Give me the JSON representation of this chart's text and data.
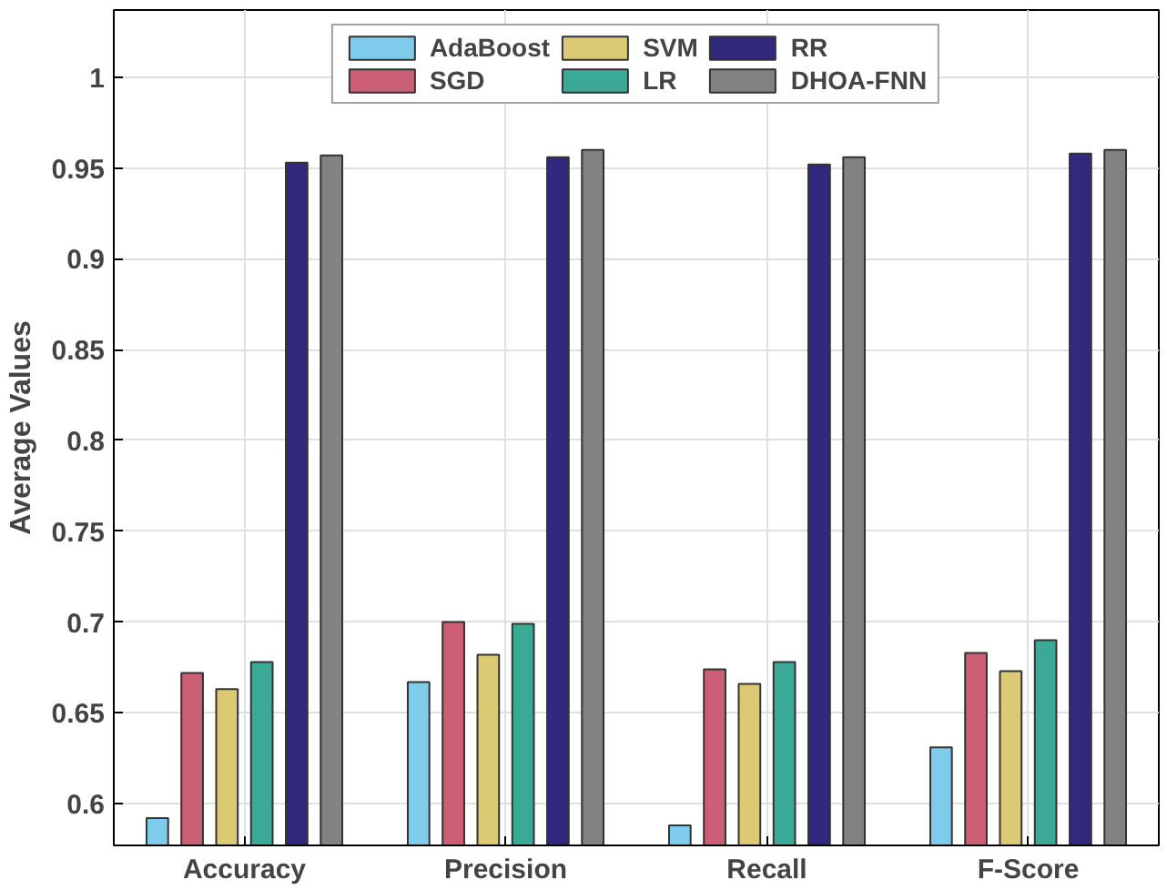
{
  "chart_data": {
    "type": "bar",
    "ylabel": "Average Values",
    "categories": [
      "Accuracy",
      "Precision",
      "Recall",
      "F-Score"
    ],
    "series": [
      {
        "name": "AdaBoost",
        "color": "#7ecbeb",
        "values": [
          0.592,
          0.667,
          0.588,
          0.631
        ]
      },
      {
        "name": "SGD",
        "color": "#cc5f75",
        "values": [
          0.672,
          0.7,
          0.674,
          0.683
        ]
      },
      {
        "name": "SVM",
        "color": "#dcc974",
        "values": [
          0.663,
          0.682,
          0.666,
          0.673
        ]
      },
      {
        "name": "LR",
        "color": "#3aaa96",
        "values": [
          0.678,
          0.699,
          0.678,
          0.69
        ]
      },
      {
        "name": "RR",
        "color": "#30297e",
        "values": [
          0.953,
          0.956,
          0.952,
          0.958
        ]
      },
      {
        "name": "DHOA-FNN",
        "color": "#828282",
        "values": [
          0.957,
          0.96,
          0.956,
          0.96
        ]
      }
    ],
    "ylim": [
      0.577,
      1.037
    ],
    "yticks": [
      0.6,
      0.65,
      0.7,
      0.75,
      0.8,
      0.85,
      0.9,
      0.95,
      1
    ],
    "grid": true,
    "legend": "top"
  }
}
